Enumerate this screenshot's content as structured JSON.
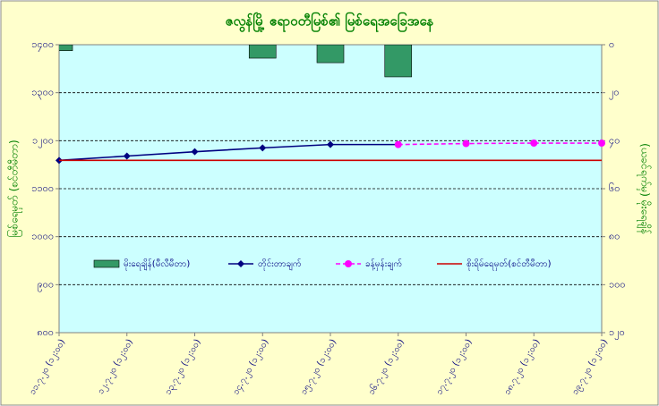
{
  "chart_data": {
    "type": "combo",
    "title": "ဇလွန်မြို့ ဧရာဝတီမြစ်၏ မြစ်ရေအခြေအနေ",
    "y_label": "မြစ်ရေမှတ် (စင်တီမီတာ)",
    "y2_label": "(ယခင်ရက်မှ) မိုးရေချိန်",
    "categories": [
      "၁၁.၇.၂၀ (၁၂:၀၀)",
      "၁၂.၇.၂၀ (၁၂:၀၀)",
      "၁၃.၇.၂၀ (၁၂:၀၀)",
      "၁၄.၇.၂၀ (၁၂:၀၀)",
      "၁၅.၇.၂၀ (၁၂:၀၀)",
      "၁၆.၇.၂၀ (၁၂:၀၀)",
      "၁၇.၇.၂၀ (၁၂:၀၀)",
      "၁၈.၇.၂၀ (၁၂:၀၀)",
      "၁၉.၇.၂၀ (၁၂:၀၀)"
    ],
    "ylim": [
      800,
      1400
    ],
    "yticks": [
      {
        "value": 800,
        "label": "၈၀၀"
      },
      {
        "value": 900,
        "label": "၉၀၀"
      },
      {
        "value": 1000,
        "label": "၁၀၀၀"
      },
      {
        "value": 1100,
        "label": "၁၁၀၀"
      },
      {
        "value": 1200,
        "label": "၁၂၀၀"
      },
      {
        "value": 1300,
        "label": "၁၃၀၀"
      },
      {
        "value": 1400,
        "label": "၁၄၀၀"
      }
    ],
    "y2lim": [
      0,
      120
    ],
    "y2_inverted": true,
    "y2ticks": [
      {
        "value": 0,
        "label": "၀"
      },
      {
        "value": 20,
        "label": "၂၀"
      },
      {
        "value": 40,
        "label": "၄၀"
      },
      {
        "value": 60,
        "label": "၆၀"
      },
      {
        "value": 80,
        "label": "၈၀"
      },
      {
        "value": 100,
        "label": "၁၀၀"
      },
      {
        "value": 120,
        "label": "၁၂၀"
      }
    ],
    "grid": true,
    "series": [
      {
        "name": "မိုးရေချိန်(မီလီမီတာ)",
        "type": "bar",
        "axis": "y2",
        "color": "#339966",
        "values": [
          2.5,
          0,
          0,
          5.6,
          7.5,
          13.4,
          0,
          0,
          0
        ]
      },
      {
        "name": "တိုင်းတာချက်",
        "type": "line",
        "color": "#000080",
        "marker": "diamond",
        "values": [
          1159,
          1168,
          1177,
          1185,
          1192,
          1192,
          null,
          null,
          null
        ]
      },
      {
        "name": "ခန့်မှန်းချက်",
        "type": "line",
        "color": "#ff00ff",
        "marker": "circle",
        "dashed": true,
        "values": [
          null,
          null,
          null,
          null,
          null,
          1192,
          1194,
          1195,
          1195
        ]
      },
      {
        "name": "စိုးရိမ်ရေမှတ်(စင်တီမီတာ)",
        "type": "line",
        "color": "#cc0000",
        "values": [
          1159,
          1159,
          1159,
          1159,
          1159,
          1159,
          1159,
          1159,
          1159
        ]
      }
    ]
  }
}
